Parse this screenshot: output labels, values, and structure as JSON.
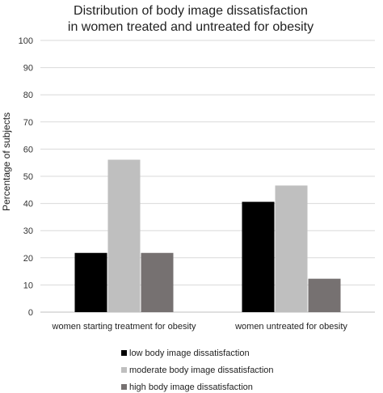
{
  "chart_data": {
    "type": "bar",
    "title": [
      "Distribution of body image dissatisfaction",
      "in women treated and untreated for obesity"
    ],
    "xlabel": "",
    "ylabel": "Percentage of subjects",
    "ylim": [
      0,
      100
    ],
    "yticks": [
      0,
      10,
      20,
      30,
      40,
      50,
      60,
      70,
      80,
      90,
      100
    ],
    "grid": true,
    "legend_position": "bottom",
    "categories": [
      "women starting treatment for obesity",
      "women untreated for obesity"
    ],
    "series": [
      {
        "name": "low body image dissatisfaction",
        "color": "#000000",
        "values": [
          21.8,
          40.6
        ]
      },
      {
        "name": "moderate body image dissatisfaction",
        "color": "#bfbfbf",
        "values": [
          56.1,
          46.6
        ]
      },
      {
        "name": "high body image dissatisfaction",
        "color": "#767171",
        "values": [
          21.8,
          12.3
        ]
      }
    ]
  }
}
